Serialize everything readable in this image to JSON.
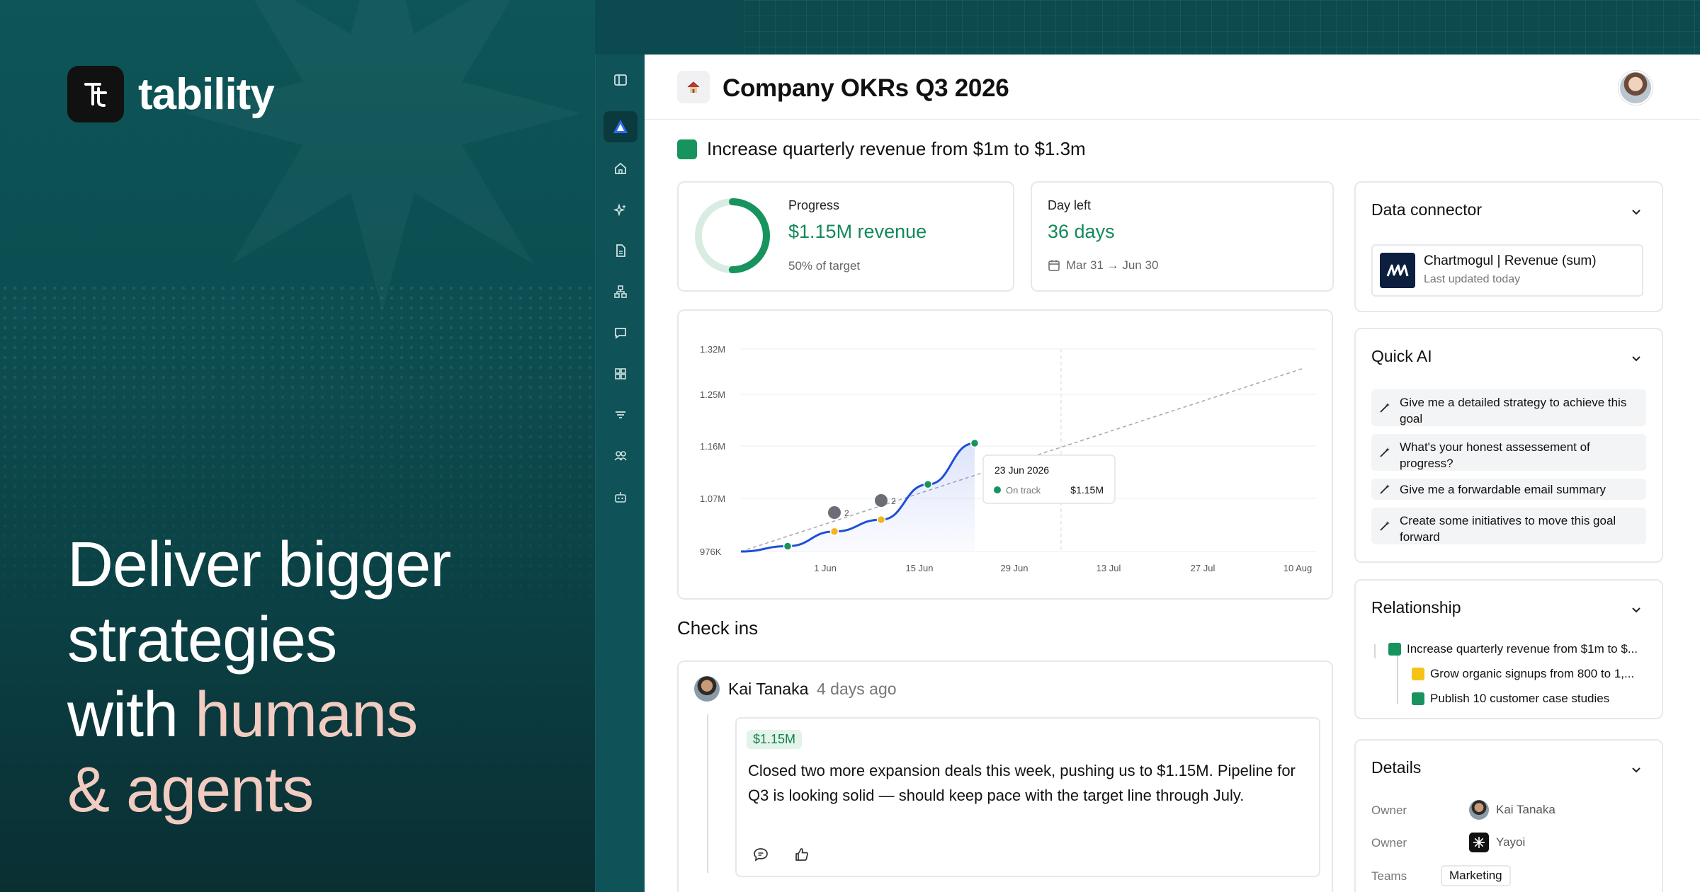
{
  "brand": {
    "name": "tability"
  },
  "headline": {
    "line1": "Deliver bigger",
    "line2": "strategies",
    "line3_a": "with ",
    "line3_b": "humans",
    "line4": "& agents"
  },
  "page": {
    "title": "Company OKRs Q3 2026"
  },
  "goal": {
    "title": "Increase quarterly revenue from $1m to $1.3m"
  },
  "progress": {
    "label": "Progress",
    "value": "$1.15M revenue",
    "sub": "50% of target",
    "fraction": 0.5
  },
  "days_left": {
    "label": "Day left",
    "value": "36 days",
    "range": "Mar 31 → Jun 30"
  },
  "chart_data": {
    "type": "line",
    "y_ticks": [
      "1.32M",
      "1.25M",
      "1.16M",
      "1.07M",
      "976K"
    ],
    "x_ticks": [
      "1 Jun",
      "15 Jun",
      "29 Jun",
      "13 Jul",
      "27 Jul",
      "10 Aug"
    ],
    "tooltip": {
      "date": "23 Jun 2026",
      "status": "On track",
      "value": "$1.15M"
    },
    "comment_counts": [
      "2",
      "2"
    ],
    "series": [
      {
        "values": [
          976,
          985,
          1010,
          1030,
          1090,
          1160
        ]
      }
    ],
    "target_line": {
      "from": 976,
      "to": 1300
    }
  },
  "checkins": {
    "title": "Check ins",
    "items": [
      {
        "author": "Kai Tanaka",
        "time": "4 days ago",
        "badge": "$1.15M",
        "text": "Closed two more expansion deals this week, pushing us to $1.15M. Pipeline for Q3 is looking solid — should keep pace with the target line through July."
      }
    ]
  },
  "data_connector": {
    "title": "Data connector",
    "name": "Chartmogul | Revenue (sum)",
    "updated": "Last updated today"
  },
  "quick_ai": {
    "title": "Quick AI",
    "items": [
      "Give me a detailed strategy to achieve this goal",
      "What's your honest assessement of progress?",
      "Give me a forwardable email summary",
      "Create some initiatives to move this goal forward"
    ]
  },
  "relationship": {
    "title": "Relationship",
    "items": [
      {
        "label": "Increase quarterly revenue from $1m to $...",
        "color": "#17935e"
      },
      {
        "label": "Grow organic signups from 800 to 1,...",
        "color": "#f5c316"
      },
      {
        "label": "Publish 10 customer case studies",
        "color": "#17935e"
      }
    ]
  },
  "details": {
    "title": "Details",
    "rows": [
      {
        "label": "Owner",
        "value": "Kai Tanaka"
      },
      {
        "label": "Owner",
        "value": "Yayoi"
      },
      {
        "label": "Teams",
        "value": "Marketing"
      }
    ]
  }
}
